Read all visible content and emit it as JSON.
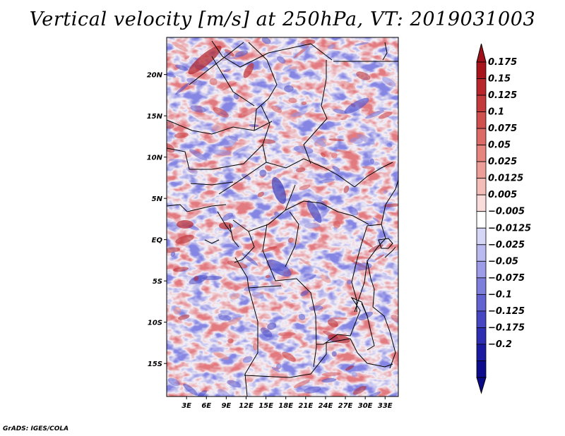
{
  "title": "Vertical velocity [m/s] at 250hPa, VT: 2019031003",
  "credit": "GrADS: IGES/COLA",
  "map": {
    "variable": "Vertical velocity",
    "units": "m/s",
    "level": "250hPa",
    "valid_time": "2019031003",
    "lon_range": [
      0,
      35
    ],
    "lat_range": [
      -19,
      24.5
    ],
    "lat_ticks": [
      {
        "value": 20,
        "label": "20N"
      },
      {
        "value": 15,
        "label": "15N"
      },
      {
        "value": 10,
        "label": "10N"
      },
      {
        "value": 5,
        "label": "5N"
      },
      {
        "value": 0,
        "label": "EQ"
      },
      {
        "value": -5,
        "label": "5S"
      },
      {
        "value": -10,
        "label": "10S"
      },
      {
        "value": -15,
        "label": "15S"
      }
    ],
    "lon_ticks": [
      {
        "value": 3,
        "label": "3E"
      },
      {
        "value": 6,
        "label": "6E"
      },
      {
        "value": 9,
        "label": "9E"
      },
      {
        "value": 12,
        "label": "12E"
      },
      {
        "value": 15,
        "label": "15E"
      },
      {
        "value": 18,
        "label": "18E"
      },
      {
        "value": 21,
        "label": "21E"
      },
      {
        "value": 24,
        "label": "24E"
      },
      {
        "value": 27,
        "label": "27E"
      },
      {
        "value": 30,
        "label": "30E"
      },
      {
        "value": 33,
        "label": "33E"
      }
    ]
  },
  "colorbar": {
    "labels": [
      "0.175",
      "0.15",
      "0.125",
      "0.1",
      "0.075",
      "0.05",
      "0.025",
      "0.0125",
      "0.005",
      "−0.005",
      "−0.0125",
      "−0.025",
      "−0.05",
      "−0.075",
      "−0.1",
      "−0.125",
      "−0.175",
      "−0.2"
    ],
    "colors": [
      "#a8141c",
      "#b8262c",
      "#c43a3c",
      "#d0504e",
      "#dc6a66",
      "#e6847e",
      "#ee9e98",
      "#f5bdb8",
      "#fadcda",
      "#ffffff",
      "#d6d6f6",
      "#babaf0",
      "#9c9ce8",
      "#7e7edc",
      "#6262d0",
      "#4646c2",
      "#2e2eb2",
      "#1a1aa0",
      "#0c0c8c"
    ],
    "top_color": "#a0101a",
    "bottom_color": "#0a0a88"
  }
}
